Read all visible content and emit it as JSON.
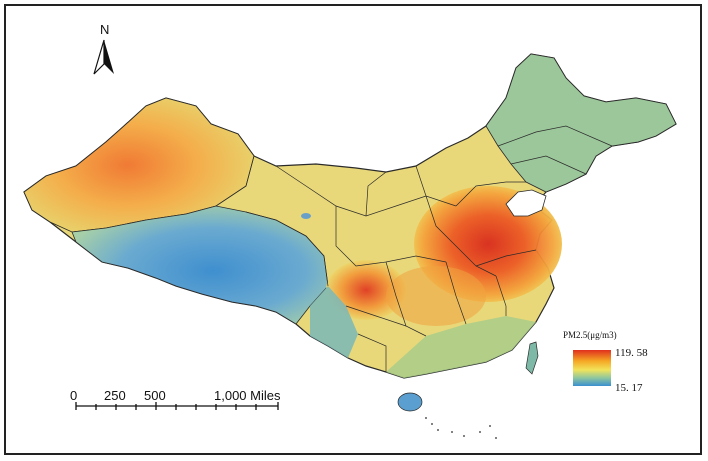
{
  "north_arrow": {
    "letter": "N",
    "icon": "north-arrow-icon"
  },
  "scale_bar": {
    "labels": [
      "0",
      "250",
      "500",
      "1,000 Miles"
    ]
  },
  "legend": {
    "title": "PM2.5(μg/m3)",
    "max_value": "119. 58",
    "min_value": "15. 17",
    "gradient_colors": [
      "#e0301e",
      "#f5a623",
      "#f2e35a",
      "#8cc6a0",
      "#3a8fd0"
    ]
  },
  "colors": {
    "low": "#4a90c8",
    "mid_low": "#8fc4a4",
    "mid": "#e8e07a",
    "mid_high": "#f4a040",
    "high": "#e03a1c",
    "border": "#2a2a2a"
  }
}
